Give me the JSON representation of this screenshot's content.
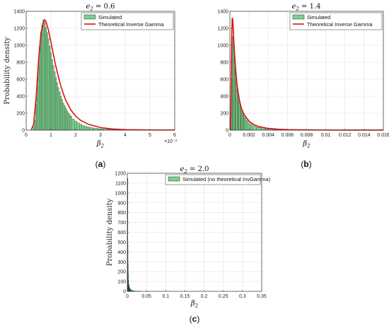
{
  "chart_data": [
    {
      "type": "bar",
      "panel": "(a)",
      "caption_letter": "a",
      "title": "e2 = 0.6",
      "title_sym": "e",
      "title_sub": "2",
      "title_eq": " = 0.6",
      "xlabel_sym": "β",
      "xlabel_sub": "2",
      "ylabel": "Probability density",
      "x_multiplier": "×10⁻³",
      "xlim": [
        0,
        6
      ],
      "ylim": [
        0,
        1400
      ],
      "xticks": [
        "0",
        "1",
        "2",
        "3",
        "4",
        "5",
        "6"
      ],
      "yticks": [
        "0",
        "200",
        "400",
        "600",
        "800",
        "1000",
        "1200",
        "1400"
      ],
      "grid": true,
      "legend_position": "top-right",
      "legend": [
        "Simulated",
        "Theoretical Inverse Gamma"
      ],
      "hist_x_scaled": [
        0.3,
        0.35,
        0.4,
        0.45,
        0.5,
        0.55,
        0.6,
        0.65,
        0.7,
        0.75,
        0.8,
        0.85,
        0.9,
        0.95,
        1.0,
        1.05,
        1.1,
        1.15,
        1.2,
        1.25,
        1.3,
        1.35,
        1.4,
        1.45,
        1.5,
        1.55,
        1.6,
        1.65,
        1.7,
        1.75,
        1.8,
        1.9,
        2.0,
        2.1,
        2.2,
        2.3,
        2.4,
        2.5,
        2.6,
        2.8,
        3.0,
        3.2,
        3.5,
        4.0,
        4.5
      ],
      "hist_density": [
        40,
        120,
        300,
        520,
        760,
        980,
        1150,
        1240,
        1300,
        1270,
        1210,
        1150,
        1080,
        990,
        910,
        830,
        760,
        690,
        620,
        560,
        500,
        450,
        400,
        360,
        320,
        290,
        260,
        230,
        205,
        185,
        165,
        130,
        105,
        85,
        70,
        55,
        45,
        38,
        30,
        22,
        15,
        10,
        6,
        3,
        1
      ],
      "theory_x_scaled": [
        0.2,
        0.3,
        0.4,
        0.5,
        0.6,
        0.7,
        0.75,
        0.8,
        0.9,
        1.0,
        1.1,
        1.2,
        1.3,
        1.4,
        1.5,
        1.6,
        1.8,
        2.0,
        2.2,
        2.5,
        3.0,
        3.5,
        4.0,
        5.0,
        6.0
      ],
      "theory_density": [
        0,
        70,
        380,
        820,
        1150,
        1280,
        1300,
        1280,
        1180,
        1040,
        890,
        750,
        630,
        520,
        430,
        350,
        240,
        165,
        115,
        70,
        30,
        13,
        6,
        2,
        1
      ]
    },
    {
      "type": "bar",
      "panel": "(b)",
      "caption_letter": "b",
      "title": "e2 = 1.4",
      "title_sym": "e",
      "title_sub": "2",
      "title_eq": " = 1.4",
      "xlabel_sym": "β",
      "xlabel_sub": "2",
      "ylabel": "",
      "xlim": [
        0,
        0.016
      ],
      "ylim": [
        0,
        1400
      ],
      "xticks": [
        "0",
        "0.002",
        "0.004",
        "0.006",
        "0.008",
        "0.01",
        "0.012",
        "0.014",
        "0.016"
      ],
      "yticks": [
        "0",
        "200",
        "400",
        "600",
        "800",
        "1000",
        "1200",
        "1400"
      ],
      "grid": true,
      "legend_position": "top-right",
      "legend": [
        "Simulated",
        "Theoretical Inverse Gamma"
      ],
      "hist_x": [
        0.0001,
        0.0002,
        0.0003,
        0.0004,
        0.0005,
        0.0006,
        0.0007,
        0.0008,
        0.0009,
        0.001,
        0.0011,
        0.0012,
        0.0013,
        0.0014,
        0.0015,
        0.0016,
        0.0018,
        0.002,
        0.0022,
        0.0025,
        0.003,
        0.0035,
        0.004,
        0.005,
        0.006,
        0.008
      ],
      "hist_density": [
        50,
        600,
        1100,
        1000,
        850,
        720,
        600,
        500,
        420,
        350,
        300,
        255,
        220,
        190,
        165,
        140,
        110,
        85,
        68,
        50,
        32,
        20,
        13,
        7,
        4,
        1
      ],
      "theory_x": [
        5e-05,
        0.0001,
        0.00015,
        0.0002,
        0.00025,
        0.0003,
        0.00035,
        0.0004,
        0.0005,
        0.0006,
        0.0007,
        0.0008,
        0.001,
        0.0012,
        0.0015,
        0.002,
        0.0025,
        0.003,
        0.004,
        0.005,
        0.006,
        0.008,
        0.01,
        0.012,
        0.014,
        0.016
      ],
      "theory_density": [
        0,
        150,
        700,
        1150,
        1320,
        1300,
        1200,
        1080,
        880,
        720,
        590,
        490,
        350,
        260,
        180,
        105,
        65,
        42,
        20,
        11,
        6,
        3,
        1,
        0.5,
        0.3,
        0.2
      ]
    },
    {
      "type": "bar",
      "panel": "(c)",
      "caption_letter": "c",
      "title": "e2 = 2.0",
      "title_sym": "e",
      "title_sub": "2",
      "title_eq": " = 2.0",
      "xlabel_sym": "β",
      "xlabel_sub": "2",
      "ylabel": "Probability density",
      "xlim": [
        0,
        0.35
      ],
      "ylim": [
        0,
        1200
      ],
      "xticks": [
        "0",
        "0.05",
        "0.1",
        "0.15",
        "0.2",
        "0.25",
        "0.3",
        "0.35"
      ],
      "yticks": [
        "0",
        "100",
        "200",
        "300",
        "400",
        "500",
        "600",
        "700",
        "800",
        "900",
        "1000",
        "1100",
        "1200"
      ],
      "grid": true,
      "legend_position": "top-right",
      "legend": [
        "Simulated (no theoretical InvGamma)"
      ],
      "hist_x": [
        0.0005,
        0.001,
        0.0015,
        0.002,
        0.003,
        0.004,
        0.005,
        0.006,
        0.008,
        0.01,
        0.012,
        0.015,
        0.02,
        0.03
      ],
      "hist_density": [
        1150,
        470,
        280,
        180,
        110,
        70,
        48,
        34,
        22,
        15,
        10,
        6,
        3,
        1
      ]
    }
  ]
}
